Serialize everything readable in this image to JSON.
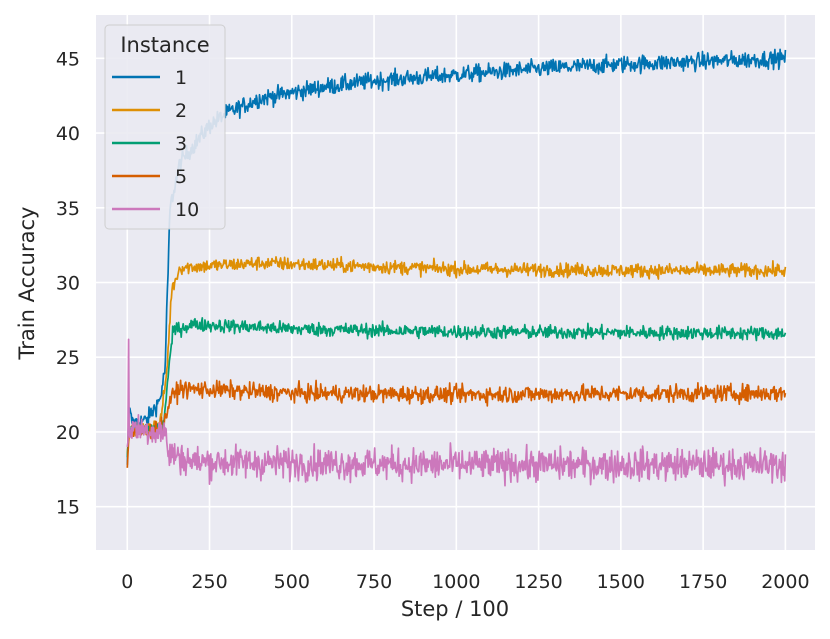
{
  "chart_data": {
    "type": "line",
    "title": "",
    "xlabel": "Step / 100",
    "ylabel": "Train Accuracy",
    "xlim": [
      -95,
      2090
    ],
    "ylim": [
      12.1,
      47.9
    ],
    "xticks": [
      0,
      250,
      500,
      750,
      1000,
      1250,
      1500,
      1750,
      2000
    ],
    "yticks": [
      15,
      20,
      25,
      30,
      35,
      40,
      45
    ],
    "grid": true,
    "legend": {
      "title": "Instance",
      "placement": "top-left"
    },
    "series": [
      {
        "name": "1",
        "color": "#0173b2",
        "noise": 0.75,
        "points": [
          [
            0,
            17.8
          ],
          [
            5,
            21.6
          ],
          [
            15,
            20.6
          ],
          [
            60,
            20.8
          ],
          [
            100,
            22.2
          ],
          [
            115,
            24.2
          ],
          [
            130,
            35.0
          ],
          [
            160,
            38.0
          ],
          [
            250,
            40.5
          ],
          [
            300,
            41.3
          ],
          [
            400,
            42.3
          ],
          [
            500,
            42.7
          ],
          [
            600,
            43.1
          ],
          [
            750,
            43.5
          ],
          [
            1000,
            43.9
          ],
          [
            1250,
            44.3
          ],
          [
            1500,
            44.6
          ],
          [
            1750,
            44.8
          ],
          [
            2000,
            45.0
          ]
        ]
      },
      {
        "name": "2",
        "color": "#de8f05",
        "noise": 0.6,
        "points": [
          [
            0,
            18.5
          ],
          [
            5,
            20.0
          ],
          [
            100,
            20.5
          ],
          [
            120,
            24.0
          ],
          [
            135,
            29.5
          ],
          [
            160,
            31.0
          ],
          [
            400,
            31.3
          ],
          [
            1000,
            30.9
          ],
          [
            1500,
            30.8
          ],
          [
            2000,
            30.8
          ]
        ]
      },
      {
        "name": "3",
        "color": "#029e73",
        "noise": 0.6,
        "points": [
          [
            0,
            18.3
          ],
          [
            5,
            20.0
          ],
          [
            110,
            20.4
          ],
          [
            125,
            24.0
          ],
          [
            140,
            26.8
          ],
          [
            200,
            27.2
          ],
          [
            500,
            26.9
          ],
          [
            1000,
            26.7
          ],
          [
            2000,
            26.6
          ]
        ]
      },
      {
        "name": "5",
        "color": "#d55e00",
        "noise": 0.75,
        "points": [
          [
            0,
            17.6
          ],
          [
            5,
            19.8
          ],
          [
            110,
            20.3
          ],
          [
            130,
            22.2
          ],
          [
            160,
            22.9
          ],
          [
            500,
            22.6
          ],
          [
            1000,
            22.5
          ],
          [
            2000,
            22.6
          ]
        ]
      },
      {
        "name": "10",
        "color": "#cc78bc",
        "noise": 1.4,
        "spike": [
          3,
          26.2
        ],
        "points": [
          [
            0,
            19.0
          ],
          [
            8,
            20.3
          ],
          [
            115,
            20.0
          ],
          [
            125,
            18.6
          ],
          [
            200,
            18.0
          ],
          [
            1000,
            17.8
          ],
          [
            2000,
            17.8
          ]
        ]
      }
    ]
  }
}
